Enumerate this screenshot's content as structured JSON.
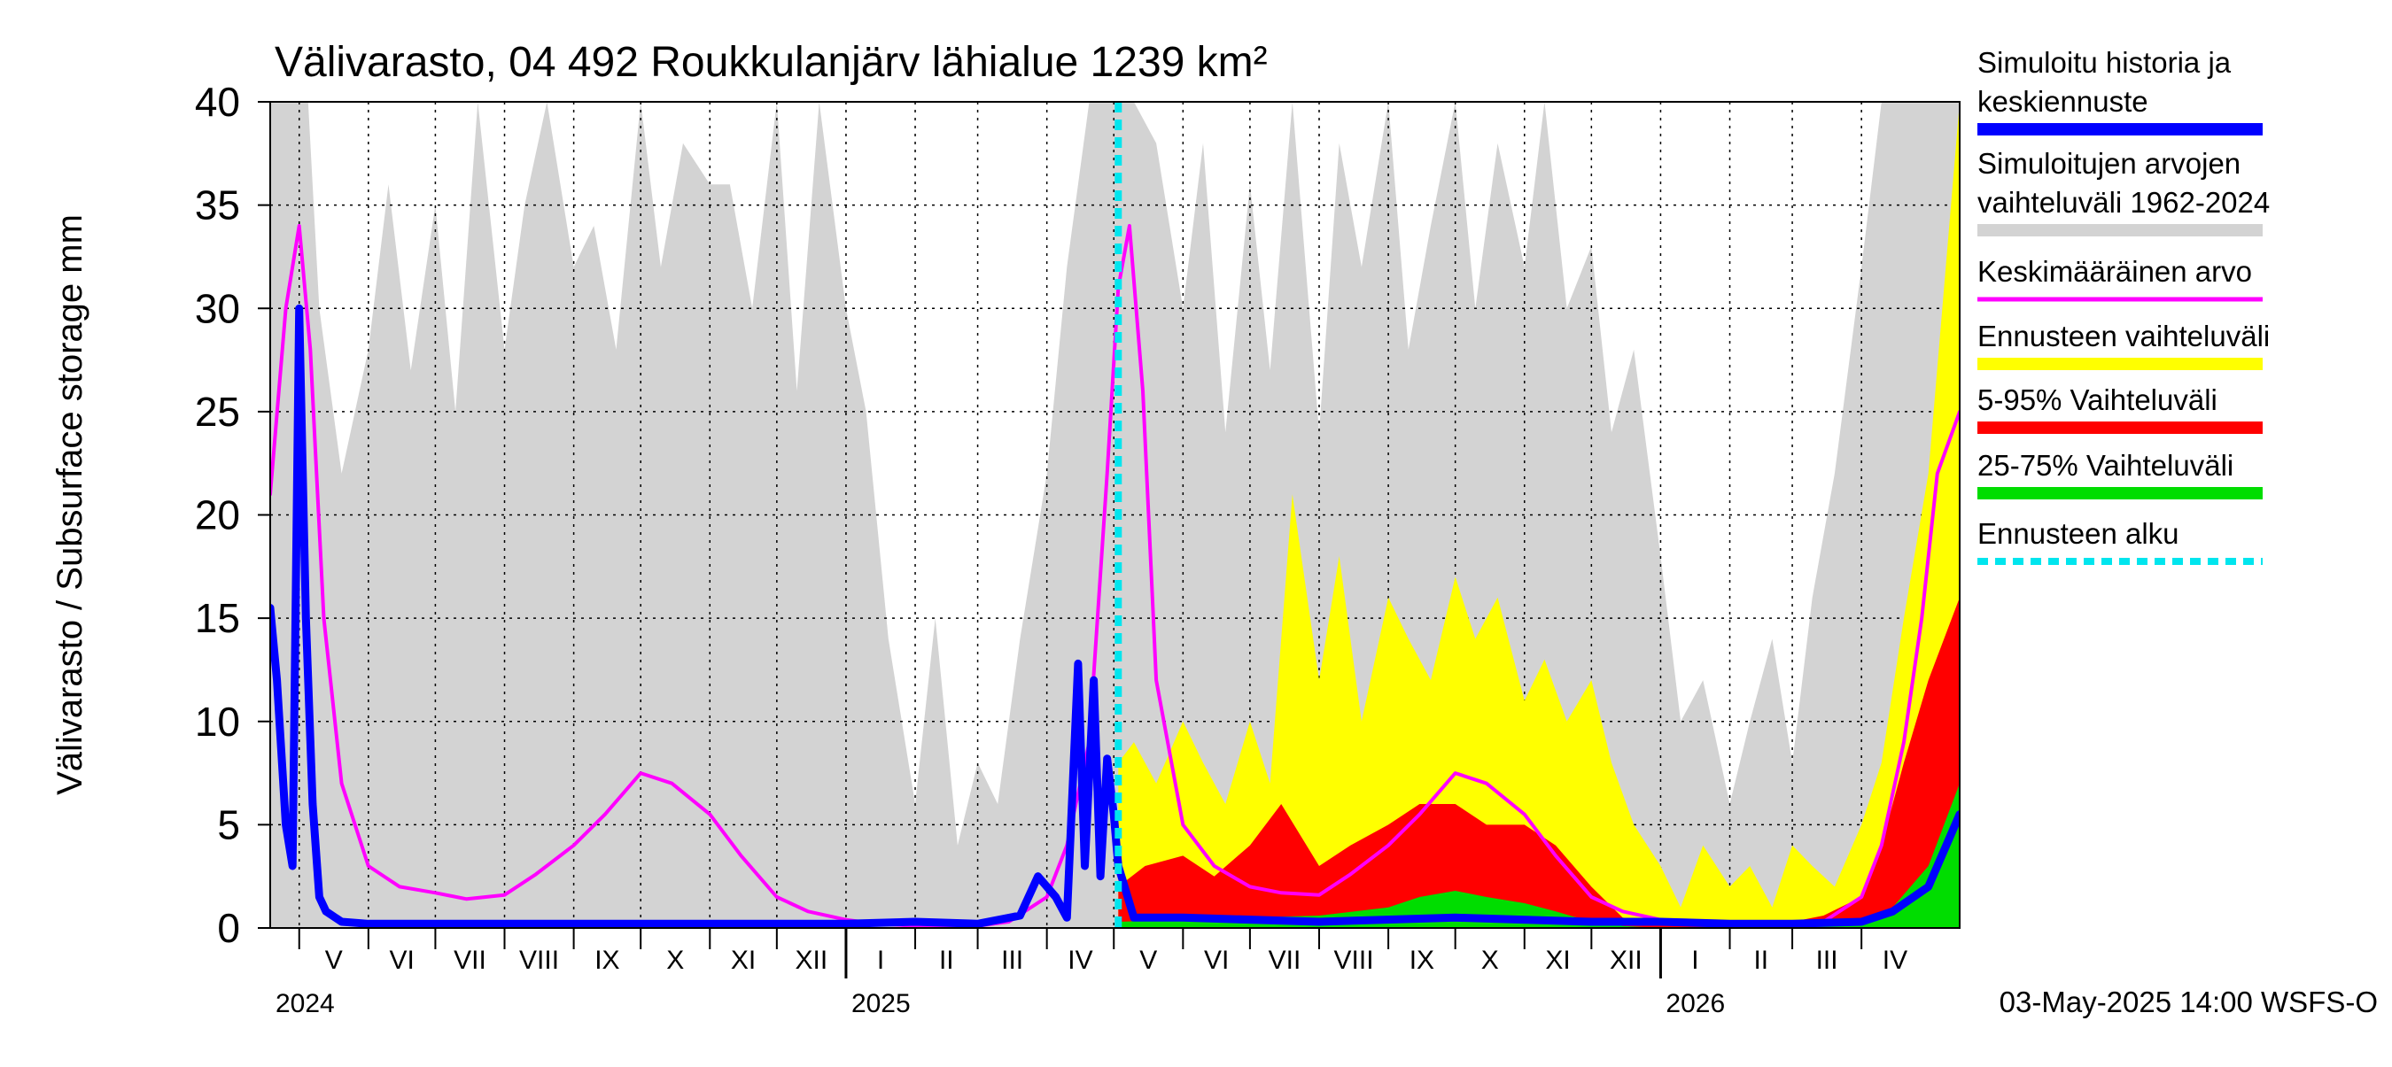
{
  "chart_data": {
    "type": "area",
    "title": "Välivarasto, 04 492 Roukkulanjärv lähialue 1239 km²",
    "ylabel": "Välivarasto / Subsurface storage  mm",
    "xlabel": "",
    "ylim": [
      0,
      40
    ],
    "yticks": [
      "0",
      "5",
      "10",
      "15",
      "20",
      "25",
      "30",
      "35",
      "40"
    ],
    "xlim": [
      "2024-04-18",
      "2026-05-15"
    ],
    "grid": true,
    "legend_position": "right",
    "months": [
      {
        "label": "V",
        "start": "2024-05-01",
        "end": "2024-06-01"
      },
      {
        "label": "VI",
        "start": "2024-06-01",
        "end": "2024-07-01"
      },
      {
        "label": "VII",
        "start": "2024-07-01",
        "end": "2024-08-01"
      },
      {
        "label": "VIII",
        "start": "2024-08-01",
        "end": "2024-09-01"
      },
      {
        "label": "IX",
        "start": "2024-09-01",
        "end": "2024-10-01"
      },
      {
        "label": "X",
        "start": "2024-10-01",
        "end": "2024-11-01"
      },
      {
        "label": "XI",
        "start": "2024-11-01",
        "end": "2024-12-01"
      },
      {
        "label": "XII",
        "start": "2024-12-01",
        "end": "2025-01-01"
      },
      {
        "label": "I",
        "start": "2025-01-01",
        "end": "2025-02-01"
      },
      {
        "label": "II",
        "start": "2025-02-01",
        "end": "2025-03-01"
      },
      {
        "label": "III",
        "start": "2025-03-01",
        "end": "2025-04-01"
      },
      {
        "label": "IV",
        "start": "2025-04-01",
        "end": "2025-05-01"
      },
      {
        "label": "V",
        "start": "2025-05-01",
        "end": "2025-06-01"
      },
      {
        "label": "VI",
        "start": "2025-06-01",
        "end": "2025-07-01"
      },
      {
        "label": "VII",
        "start": "2025-07-01",
        "end": "2025-08-01"
      },
      {
        "label": "VIII",
        "start": "2025-08-01",
        "end": "2025-09-01"
      },
      {
        "label": "IX",
        "start": "2025-09-01",
        "end": "2025-10-01"
      },
      {
        "label": "X",
        "start": "2025-10-01",
        "end": "2025-11-01"
      },
      {
        "label": "XI",
        "start": "2025-11-01",
        "end": "2025-12-01"
      },
      {
        "label": "XII",
        "start": "2025-12-01",
        "end": "2026-01-01"
      },
      {
        "label": "I",
        "start": "2026-01-01",
        "end": "2026-02-01"
      },
      {
        "label": "II",
        "start": "2026-02-01",
        "end": "2026-03-01"
      },
      {
        "label": "III",
        "start": "2026-03-01",
        "end": "2026-04-01"
      },
      {
        "label": "IV",
        "start": "2026-04-01",
        "end": "2026-05-01"
      }
    ],
    "years": [
      {
        "label": "2024",
        "date": "2024-04-18"
      },
      {
        "label": "2025",
        "date": "2025-01-01"
      },
      {
        "label": "2026",
        "date": "2026-01-01"
      }
    ],
    "forecast_start": "2025-05-03",
    "footer": "03-May-2025 14:00 WSFS-O",
    "legend": [
      {
        "label": "Simuloitu historia ja\nkeskiennuste",
        "color": "#0000ff",
        "style": "solid"
      },
      {
        "label": "Simuloitujen arvojen\nvaihteluväli 1962-2024",
        "color": "#d3d3d3",
        "style": "band"
      },
      {
        "label": "Keskimääräinen arvo",
        "color": "#ff00ff",
        "style": "solid"
      },
      {
        "label": "Ennusteen vaihteluväli",
        "color": "#ffff00",
        "style": "band"
      },
      {
        "label": "5-95% Vaihteluväli",
        "color": "#ff0000",
        "style": "band"
      },
      {
        "label": "25-75% Vaihteluväli",
        "color": "#00dd00",
        "style": "band"
      },
      {
        "label": "Ennusteen alku",
        "color": "#00e5ee",
        "style": "dashed"
      }
    ],
    "series": [
      {
        "name": "Simuloitujen arvojen vaihteluväli 1962-2024",
        "color": "#d3d3d3",
        "x": [
          "2024-04-18",
          "2024-04-28",
          "2024-05-05",
          "2024-05-10",
          "2024-05-20",
          "2024-06-01",
          "2024-06-10",
          "2024-06-20",
          "2024-07-01",
          "2024-07-10",
          "2024-07-20",
          "2024-08-01",
          "2024-08-10",
          "2024-08-20",
          "2024-09-01",
          "2024-09-10",
          "2024-09-20",
          "2024-10-01",
          "2024-10-10",
          "2024-10-20",
          "2024-11-01",
          "2024-11-10",
          "2024-11-20",
          "2024-12-01",
          "2024-12-10",
          "2024-12-20",
          "2025-01-01",
          "2025-01-10",
          "2025-01-20",
          "2025-02-01",
          "2025-02-10",
          "2025-02-20",
          "2025-03-01",
          "2025-03-10",
          "2025-03-20",
          "2025-04-01",
          "2025-04-10",
          "2025-04-20",
          "2025-05-01",
          "2025-05-10",
          "2025-05-20",
          "2025-06-01",
          "2025-06-10",
          "2025-06-20",
          "2025-07-01",
          "2025-07-10",
          "2025-07-20",
          "2025-08-01",
          "2025-08-10",
          "2025-08-20",
          "2025-09-01",
          "2025-09-10",
          "2025-09-20",
          "2025-10-01",
          "2025-10-10",
          "2025-10-20",
          "2025-11-01",
          "2025-11-10",
          "2025-11-20",
          "2025-12-01",
          "2025-12-10",
          "2025-12-20",
          "2026-01-01",
          "2026-01-10",
          "2026-01-20",
          "2026-02-01",
          "2026-02-10",
          "2026-02-20",
          "2026-03-01",
          "2026-03-10",
          "2026-03-20",
          "2026-04-01",
          "2026-04-10",
          "2026-04-20",
          "2026-05-01",
          "2026-05-15"
        ],
        "low": [
          0,
          0,
          0,
          0,
          0,
          0,
          0,
          0,
          0,
          0,
          0,
          0,
          0,
          0,
          0,
          0,
          0,
          0,
          0,
          0,
          0,
          0,
          0,
          0,
          0,
          0,
          0,
          0,
          0,
          0,
          0,
          0,
          0,
          0,
          0,
          0,
          0,
          0,
          0,
          0,
          0,
          0,
          0,
          0,
          0,
          0,
          0,
          0,
          0,
          0,
          0,
          0,
          0,
          0,
          0,
          0,
          0,
          0,
          0,
          0,
          0,
          0,
          0,
          0,
          0,
          0,
          0,
          0,
          0,
          0,
          0,
          0,
          0,
          0,
          0,
          0
        ],
        "high": [
          40,
          40,
          40,
          30,
          22,
          28,
          36,
          27,
          35,
          25,
          40,
          28,
          35,
          40,
          32,
          34,
          28,
          40,
          32,
          38,
          36,
          36,
          30,
          40,
          26,
          40,
          30,
          25,
          14,
          6,
          15,
          4,
          8,
          6,
          14,
          22,
          32,
          40,
          40,
          40,
          38,
          30,
          38,
          24,
          36,
          27,
          40,
          24,
          38,
          32,
          40,
          28,
          34,
          40,
          30,
          38,
          32,
          40,
          30,
          33,
          24,
          28,
          18,
          10,
          12,
          6,
          10,
          14,
          8,
          16,
          22,
          32,
          40,
          40,
          40,
          40
        ]
      },
      {
        "name": "Ennusteen vaihteluväli",
        "color": "#ffff00",
        "x": [
          "2025-05-03",
          "2025-05-10",
          "2025-05-20",
          "2025-06-01",
          "2025-06-10",
          "2025-06-20",
          "2025-07-01",
          "2025-07-10",
          "2025-07-20",
          "2025-08-01",
          "2025-08-10",
          "2025-08-20",
          "2025-09-01",
          "2025-09-10",
          "2025-09-20",
          "2025-10-01",
          "2025-10-10",
          "2025-10-20",
          "2025-11-01",
          "2025-11-10",
          "2025-11-20",
          "2025-12-01",
          "2025-12-10",
          "2025-12-20",
          "2026-01-01",
          "2026-01-10",
          "2026-01-20",
          "2026-02-01",
          "2026-02-10",
          "2026-02-20",
          "2026-03-01",
          "2026-03-10",
          "2026-03-20",
          "2026-04-01",
          "2026-04-10",
          "2026-04-20",
          "2026-05-01",
          "2026-05-15"
        ],
        "low": [
          0,
          0,
          0,
          0,
          0,
          0,
          0,
          0,
          0,
          0,
          0,
          0,
          0,
          0,
          0,
          0,
          0,
          0,
          0,
          0,
          0,
          0,
          0,
          0,
          0,
          0,
          0,
          0,
          0,
          0,
          0,
          0,
          0,
          0,
          0,
          0,
          0,
          0
        ],
        "high": [
          8,
          9,
          7,
          10,
          8,
          6,
          10,
          7,
          21,
          12,
          18,
          10,
          16,
          14,
          12,
          17,
          14,
          16,
          11,
          13,
          10,
          12,
          8,
          5,
          3,
          1,
          4,
          2,
          3,
          1,
          4,
          3,
          2,
          5,
          8,
          15,
          22,
          40
        ]
      },
      {
        "name": "5-95% Vaihteluväli",
        "color": "#ff0000",
        "x": [
          "2025-05-03",
          "2025-05-15",
          "2025-06-01",
          "2025-06-15",
          "2025-07-01",
          "2025-07-15",
          "2025-08-01",
          "2025-08-15",
          "2025-09-01",
          "2025-09-15",
          "2025-10-01",
          "2025-10-15",
          "2025-11-01",
          "2025-11-15",
          "2025-12-01",
          "2025-12-15",
          "2026-01-01",
          "2026-01-15",
          "2026-02-01",
          "2026-02-15",
          "2026-03-01",
          "2026-03-15",
          "2026-04-01",
          "2026-04-10",
          "2026-04-20",
          "2026-05-01",
          "2026-05-15"
        ],
        "low": [
          0,
          0,
          0,
          0,
          0,
          0,
          0,
          0,
          0,
          0,
          0,
          0,
          0,
          0,
          0,
          0,
          0,
          0,
          0,
          0,
          0,
          0,
          0,
          0,
          0,
          0,
          0
        ],
        "high": [
          2,
          3,
          3.5,
          2.5,
          4,
          6,
          3,
          4,
          5,
          6,
          6,
          5,
          5,
          4,
          2,
          0.5,
          0.2,
          0.1,
          0.1,
          0.1,
          0.3,
          0.6,
          1.5,
          4,
          8,
          12,
          16
        ]
      },
      {
        "name": "25-75% Vaihteluväli",
        "color": "#00dd00",
        "x": [
          "2025-05-03",
          "2025-06-01",
          "2025-07-01",
          "2025-08-01",
          "2025-09-01",
          "2025-09-15",
          "2025-10-01",
          "2025-10-15",
          "2025-11-01",
          "2025-11-15",
          "2025-12-01",
          "2025-12-15",
          "2026-01-01",
          "2026-02-01",
          "2026-03-01",
          "2026-04-01",
          "2026-04-15",
          "2026-05-01",
          "2026-05-15"
        ],
        "low": [
          0,
          0,
          0,
          0,
          0,
          0,
          0,
          0,
          0,
          0,
          0,
          0,
          0,
          0,
          0,
          0,
          0,
          0,
          0
        ],
        "high": [
          0.3,
          0.4,
          0.5,
          0.6,
          1,
          1.5,
          1.8,
          1.5,
          1.2,
          0.8,
          0.3,
          0.1,
          0,
          0,
          0,
          0.4,
          1,
          3,
          7
        ]
      },
      {
        "name": "Keskimääräinen arvo",
        "color": "#ff00ff",
        "x": [
          "2024-04-18",
          "2024-04-25",
          "2024-05-01",
          "2024-05-06",
          "2024-05-12",
          "2024-05-20",
          "2024-06-01",
          "2024-06-15",
          "2024-07-01",
          "2024-07-15",
          "2024-08-01",
          "2024-08-15",
          "2024-09-01",
          "2024-09-15",
          "2024-10-01",
          "2024-10-15",
          "2024-11-01",
          "2024-11-15",
          "2024-12-01",
          "2024-12-15",
          "2025-01-01",
          "2025-01-15",
          "2025-02-01",
          "2025-02-15",
          "2025-03-01",
          "2025-03-15",
          "2025-04-01",
          "2025-04-10",
          "2025-04-20",
          "2025-04-28",
          "2025-05-03",
          "2025-05-08",
          "2025-05-14",
          "2025-05-20",
          "2025-06-01",
          "2025-06-15",
          "2025-07-01",
          "2025-07-15",
          "2025-08-01",
          "2025-08-15",
          "2025-09-01",
          "2025-09-15",
          "2025-10-01",
          "2025-10-15",
          "2025-11-01",
          "2025-11-15",
          "2025-12-01",
          "2025-12-15",
          "2026-01-01",
          "2026-01-15",
          "2026-02-01",
          "2026-02-15",
          "2026-03-01",
          "2026-03-15",
          "2026-04-01",
          "2026-04-10",
          "2026-04-20",
          "2026-04-28",
          "2026-05-05",
          "2026-05-15"
        ],
        "y": [
          21,
          30,
          34,
          28,
          15,
          7,
          3,
          2,
          1.7,
          1.4,
          1.6,
          2.6,
          4,
          5.5,
          7.5,
          7,
          5.5,
          3.5,
          1.5,
          0.8,
          0.4,
          0.2,
          0.1,
          0.1,
          0.1,
          0.3,
          1.5,
          4,
          9,
          22,
          31,
          34,
          26,
          12,
          5,
          3,
          2,
          1.7,
          1.6,
          2.6,
          4,
          5.5,
          7.5,
          7,
          5.5,
          3.5,
          1.5,
          0.8,
          0.4,
          0.2,
          0.1,
          0.1,
          0.1,
          0.3,
          1.5,
          4,
          9,
          15,
          22,
          25
        ]
      },
      {
        "name": "Simuloitu historia ja keskiennuste",
        "color": "#0000ff",
        "x": [
          "2024-04-18",
          "2024-04-21",
          "2024-04-25",
          "2024-04-28",
          "2024-05-01",
          "2024-05-04",
          "2024-05-07",
          "2024-05-10",
          "2024-05-13",
          "2024-05-20",
          "2024-06-01",
          "2024-07-01",
          "2024-08-01",
          "2024-09-01",
          "2024-10-01",
          "2024-11-01",
          "2024-12-01",
          "2025-01-01",
          "2025-02-01",
          "2025-03-01",
          "2025-03-20",
          "2025-03-28",
          "2025-04-05",
          "2025-04-10",
          "2025-04-15",
          "2025-04-18",
          "2025-04-22",
          "2025-04-25",
          "2025-04-28",
          "2025-05-01",
          "2025-05-03",
          "2025-05-10",
          "2025-06-01",
          "2025-08-01",
          "2025-10-01",
          "2025-12-01",
          "2026-01-01",
          "2026-02-01",
          "2026-03-01",
          "2026-04-01",
          "2026-04-15",
          "2026-05-01",
          "2026-05-15"
        ],
        "y": [
          15.5,
          12,
          5,
          3,
          30,
          15,
          6,
          1.5,
          0.8,
          0.3,
          0.2,
          0.2,
          0.2,
          0.2,
          0.2,
          0.2,
          0.2,
          0.2,
          0.3,
          0.2,
          0.6,
          2.5,
          1.5,
          0.5,
          12.8,
          3,
          12,
          2.5,
          8.2,
          5.5,
          3,
          0.5,
          0.5,
          0.3,
          0.5,
          0.3,
          0.3,
          0.2,
          0.2,
          0.3,
          0.8,
          2,
          5.5
        ]
      }
    ]
  }
}
